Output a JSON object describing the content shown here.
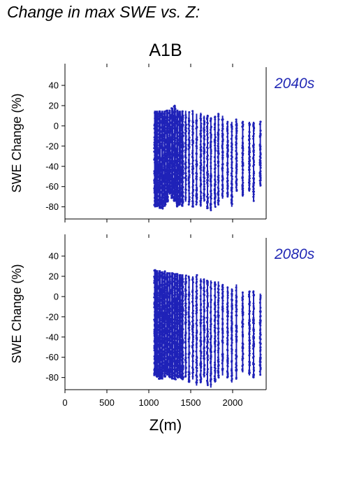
{
  "page": {
    "title": "Change in max SWE vs. Z:",
    "scenario": "A1B"
  },
  "colors": {
    "points": "#1f22b8",
    "period_label": "#2229b5",
    "axis": "#000000"
  },
  "chart_data": [
    {
      "type": "scatter",
      "period_label": "2040s",
      "xlabel": "",
      "ylabel": "SWE Change (%)",
      "xlim": [
        0,
        2400
      ],
      "ylim": [
        -92,
        58
      ],
      "xticks": [
        0,
        500,
        1000,
        1500,
        2000
      ],
      "yticks": [
        40,
        20,
        0,
        -20,
        -40,
        -60,
        -80
      ],
      "x_tick_labels_shown": false,
      "grid": false,
      "series": [
        {
          "columns": [
            {
              "x": 1075,
              "ymin": -80,
              "ymax": 15,
              "dense": true
            },
            {
              "x": 1100,
              "ymin": -80,
              "ymax": 15,
              "dense": true
            },
            {
              "x": 1130,
              "ymin": -82,
              "ymax": 15,
              "dense": true
            },
            {
              "x": 1160,
              "ymin": -82,
              "ymax": 15,
              "dense": true
            },
            {
              "x": 1190,
              "ymin": -80,
              "ymax": 15,
              "dense": true
            },
            {
              "x": 1220,
              "ymin": -75,
              "ymax": 16,
              "dense": true
            },
            {
              "x": 1250,
              "ymin": -68,
              "ymax": 16,
              "dense": true
            },
            {
              "x": 1280,
              "ymin": -72,
              "ymax": 18,
              "dense": true
            },
            {
              "x": 1310,
              "ymin": -75,
              "ymax": 20,
              "dense": true
            },
            {
              "x": 1340,
              "ymin": -80,
              "ymax": 16,
              "dense": true
            },
            {
              "x": 1370,
              "ymin": -78,
              "ymax": 15,
              "dense": true
            },
            {
              "x": 1400,
              "ymin": -80,
              "ymax": 15,
              "dense": true
            },
            {
              "x": 1440,
              "ymin": -75,
              "ymax": 15,
              "dense": false
            },
            {
              "x": 1480,
              "ymin": -78,
              "ymax": 14,
              "dense": false
            },
            {
              "x": 1525,
              "ymin": -80,
              "ymax": 15,
              "dense": false
            },
            {
              "x": 1570,
              "ymin": -78,
              "ymax": 12,
              "dense": false
            },
            {
              "x": 1620,
              "ymin": -80,
              "ymax": 13,
              "dense": false
            },
            {
              "x": 1660,
              "ymin": -75,
              "ymax": 10,
              "dense": false
            },
            {
              "x": 1700,
              "ymin": -82,
              "ymax": 11,
              "dense": false
            },
            {
              "x": 1740,
              "ymin": -84,
              "ymax": 8,
              "dense": false
            },
            {
              "x": 1790,
              "ymin": -80,
              "ymax": 10,
              "dense": false
            },
            {
              "x": 1830,
              "ymin": -78,
              "ymax": 12,
              "dense": false
            },
            {
              "x": 1880,
              "ymin": -72,
              "ymax": 10,
              "dense": false
            },
            {
              "x": 1940,
              "ymin": -70,
              "ymax": 5,
              "dense": false
            },
            {
              "x": 1990,
              "ymin": -80,
              "ymax": 4,
              "dense": false
            },
            {
              "x": 2045,
              "ymin": -65,
              "ymax": 7,
              "dense": false
            },
            {
              "x": 2120,
              "ymin": -70,
              "ymax": 5,
              "dense": false
            },
            {
              "x": 2200,
              "ymin": -65,
              "ymax": 4,
              "dense": false
            },
            {
              "x": 2250,
              "ymin": -75,
              "ymax": 4,
              "dense": false
            },
            {
              "x": 2330,
              "ymin": -60,
              "ymax": 5,
              "dense": false
            }
          ]
        }
      ]
    },
    {
      "type": "scatter",
      "period_label": "2080s",
      "xlabel": "Z(m)",
      "ylabel": "SWE Change (%)",
      "xlim": [
        0,
        2400
      ],
      "ylim": [
        -92,
        58
      ],
      "xticks": [
        0,
        500,
        1000,
        1500,
        2000
      ],
      "yticks": [
        40,
        20,
        0,
        -20,
        -40,
        -60,
        -80
      ],
      "x_tick_labels_shown": true,
      "grid": false,
      "series": [
        {
          "columns": [
            {
              "x": 1075,
              "ymin": -78,
              "ymax": 27,
              "dense": true
            },
            {
              "x": 1100,
              "ymin": -80,
              "ymax": 26,
              "dense": true
            },
            {
              "x": 1130,
              "ymin": -82,
              "ymax": 26,
              "dense": true
            },
            {
              "x": 1160,
              "ymin": -82,
              "ymax": 25,
              "dense": true
            },
            {
              "x": 1190,
              "ymin": -80,
              "ymax": 25,
              "dense": true
            },
            {
              "x": 1220,
              "ymin": -78,
              "ymax": 24,
              "dense": true
            },
            {
              "x": 1250,
              "ymin": -80,
              "ymax": 24,
              "dense": true
            },
            {
              "x": 1280,
              "ymin": -82,
              "ymax": 24,
              "dense": true
            },
            {
              "x": 1310,
              "ymin": -82,
              "ymax": 23,
              "dense": true
            },
            {
              "x": 1340,
              "ymin": -80,
              "ymax": 23,
              "dense": true
            },
            {
              "x": 1370,
              "ymin": -80,
              "ymax": 22,
              "dense": true
            },
            {
              "x": 1400,
              "ymin": -82,
              "ymax": 22,
              "dense": true
            },
            {
              "x": 1440,
              "ymin": -80,
              "ymax": 21,
              "dense": false
            },
            {
              "x": 1480,
              "ymin": -85,
              "ymax": 20,
              "dense": false
            },
            {
              "x": 1525,
              "ymin": -82,
              "ymax": 20,
              "dense": false
            },
            {
              "x": 1570,
              "ymin": -88,
              "ymax": 22,
              "dense": false
            },
            {
              "x": 1620,
              "ymin": -85,
              "ymax": 18,
              "dense": false
            },
            {
              "x": 1660,
              "ymin": -80,
              "ymax": 18,
              "dense": false
            },
            {
              "x": 1700,
              "ymin": -88,
              "ymax": 16,
              "dense": false
            },
            {
              "x": 1740,
              "ymin": -90,
              "ymax": 16,
              "dense": false
            },
            {
              "x": 1790,
              "ymin": -85,
              "ymax": 15,
              "dense": false
            },
            {
              "x": 1830,
              "ymin": -80,
              "ymax": 15,
              "dense": false
            },
            {
              "x": 1880,
              "ymin": -78,
              "ymax": 12,
              "dense": false
            },
            {
              "x": 1940,
              "ymin": -80,
              "ymax": 10,
              "dense": false
            },
            {
              "x": 1990,
              "ymin": -85,
              "ymax": 8,
              "dense": false
            },
            {
              "x": 2045,
              "ymin": -82,
              "ymax": 12,
              "dense": false
            },
            {
              "x": 2120,
              "ymin": -75,
              "ymax": 5,
              "dense": false
            },
            {
              "x": 2200,
              "ymin": -78,
              "ymax": 5,
              "dense": false
            },
            {
              "x": 2250,
              "ymin": -80,
              "ymax": 6,
              "dense": false
            },
            {
              "x": 2330,
              "ymin": -78,
              "ymax": 3,
              "dense": false
            }
          ]
        }
      ]
    }
  ]
}
